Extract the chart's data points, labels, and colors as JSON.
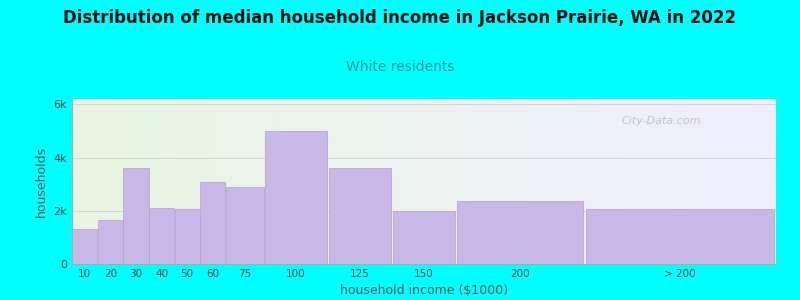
{
  "title": "Distribution of median household income in Jackson Prairie, WA in 2022",
  "subtitle": "White residents",
  "xlabel": "household income ($1000)",
  "ylabel": "households",
  "background_color": "#00FFFF",
  "bar_color": "#c8b8e8",
  "bar_edge_color": "#b0a0d0",
  "title_fontsize": 12,
  "subtitle_fontsize": 10,
  "subtitle_color": "#009999",
  "tick_color": "#444444",
  "axis_label_color": "#555555",
  "categories": [
    "10",
    "20",
    "30",
    "40",
    "50",
    "60",
    "75",
    "100",
    "125",
    "150",
    "200",
    "> 200"
  ],
  "left_edges": [
    0,
    10,
    20,
    30,
    40,
    50,
    60,
    75,
    100,
    125,
    150,
    200
  ],
  "widths": [
    10,
    10,
    10,
    10,
    10,
    10,
    15,
    25,
    25,
    25,
    50,
    75
  ],
  "values": [
    1300,
    1650,
    3600,
    2100,
    2050,
    3100,
    2900,
    5000,
    3600,
    2000,
    2350,
    2050
  ],
  "ylim": [
    0,
    6200
  ],
  "yticks": [
    0,
    2000,
    4000,
    6000
  ],
  "ytick_labels": [
    "0",
    "2k",
    "4k",
    "6k"
  ],
  "watermark": "City-Data.com"
}
